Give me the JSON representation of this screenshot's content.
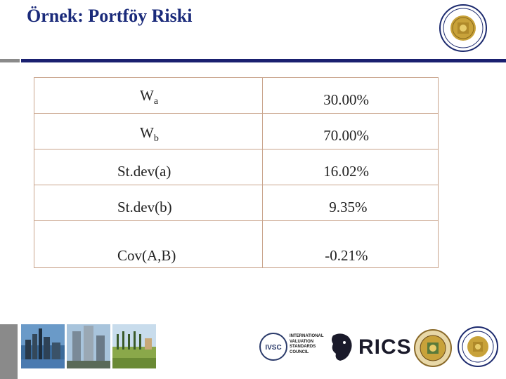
{
  "slide": {
    "title": "Örnek: Portföy Riski"
  },
  "table": {
    "rows": [
      {
        "label": "W",
        "label_sub": "a",
        "value": "30.00%"
      },
      {
        "label": "W",
        "label_sub": "b",
        "value": "70.00%"
      },
      {
        "label": "St.dev(a)",
        "value": "16.02%"
      },
      {
        "label": "St.dev(b)",
        "value": "9.35%"
      },
      {
        "label": "Cov(A,B)",
        "value": "-0.21%"
      }
    ]
  },
  "footer": {
    "ivsc_mark": "IVSC",
    "ivsc_lines": [
      "INTERNATIONAL",
      "VALUATION",
      "STANDARDS",
      "COUNCIL"
    ],
    "rics": "RICS"
  },
  "colors": {
    "title": "#1a2a7a",
    "rule": "#1a2070",
    "table_border": "#c9a48c",
    "seal_gold": "#c8a23a",
    "seal_navy": "#1c2a6e"
  }
}
